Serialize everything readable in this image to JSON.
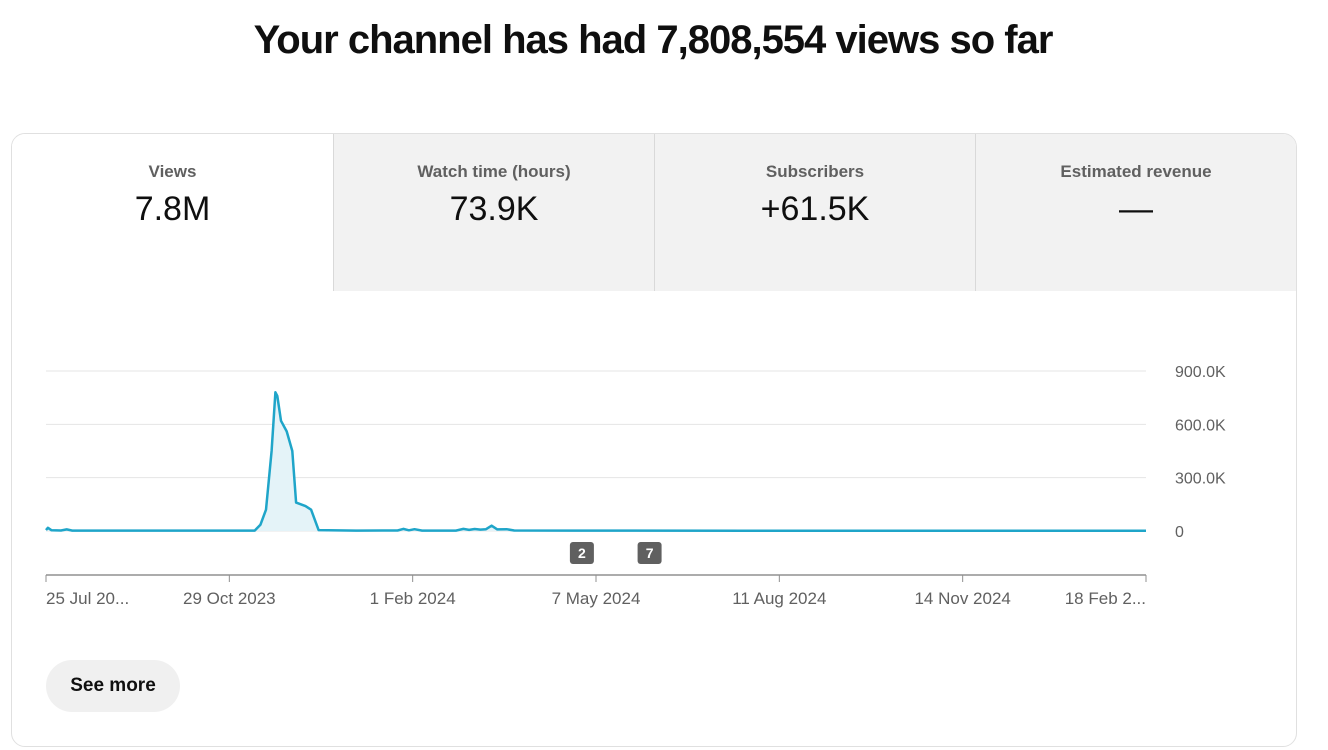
{
  "headline": "Your channel has had 7,808,554 views so far",
  "tabs": [
    {
      "label": "Views",
      "value": "7.8M"
    },
    {
      "label": "Watch time (hours)",
      "value": "73.9K"
    },
    {
      "label": "Subscribers",
      "value": "+61.5K"
    },
    {
      "label": "Estimated revenue",
      "value": "—"
    }
  ],
  "see_more_label": "See more",
  "colors": {
    "line": "#1fa5c9",
    "fill": "#e4f3f8",
    "grid": "#e5e5e5",
    "axis": "#909090",
    "marker": "#606060"
  },
  "chart_data": {
    "type": "area",
    "series": [
      {
        "values": [
          [
            "2023-07-25",
            5000
          ],
          [
            "2023-07-26",
            18000
          ],
          [
            "2023-07-28",
            4000
          ],
          [
            "2023-08-02",
            3000
          ],
          [
            "2023-08-05",
            9000
          ],
          [
            "2023-08-08",
            2000
          ],
          [
            "2023-09-01",
            2000
          ],
          [
            "2023-10-01",
            2000
          ],
          [
            "2023-11-05",
            2000
          ],
          [
            "2023-11-13",
            2000
          ],
          [
            "2023-11-16",
            35000
          ],
          [
            "2023-11-19",
            120000
          ],
          [
            "2023-11-22",
            450000
          ],
          [
            "2023-11-24",
            780000
          ],
          [
            "2023-11-25",
            760000
          ],
          [
            "2023-11-27",
            620000
          ],
          [
            "2023-11-30",
            560000
          ],
          [
            "2023-12-03",
            450000
          ],
          [
            "2023-12-05",
            160000
          ],
          [
            "2023-12-10",
            140000
          ],
          [
            "2023-12-13",
            120000
          ],
          [
            "2023-12-17",
            5000
          ],
          [
            "2024-01-06",
            2000
          ],
          [
            "2024-01-28",
            3000
          ],
          [
            "2024-01-31",
            12000
          ],
          [
            "2024-02-03",
            4000
          ],
          [
            "2024-02-06",
            10000
          ],
          [
            "2024-02-10",
            2000
          ],
          [
            "2024-02-28",
            2000
          ],
          [
            "2024-03-03",
            12000
          ],
          [
            "2024-03-06",
            6000
          ],
          [
            "2024-03-09",
            11000
          ],
          [
            "2024-03-12",
            8000
          ],
          [
            "2024-03-15",
            10000
          ],
          [
            "2024-03-18",
            30000
          ],
          [
            "2024-03-21",
            9000
          ],
          [
            "2024-03-26",
            10000
          ],
          [
            "2024-03-30",
            3000
          ],
          [
            "2024-05-01",
            2000
          ],
          [
            "2024-08-01",
            1500
          ],
          [
            "2024-11-01",
            1000
          ],
          [
            "2025-03-01",
            1000
          ]
        ]
      }
    ],
    "x_ticks": [
      "25 Jul 20...",
      "29 Oct 2023",
      "1 Feb 2024",
      "7 May 2024",
      "11 Aug 2024",
      "14 Nov 2024",
      "18 Feb 2..."
    ],
    "y_ticks": [
      "0",
      "300.0K",
      "600.0K",
      "900.0K"
    ],
    "ylim": [
      0,
      900000
    ],
    "xlim": [
      "2023-07-25",
      "2025-03-01"
    ],
    "grid": true,
    "markers": [
      {
        "label": "2",
        "date": "2024-05-05"
      },
      {
        "label": "7",
        "date": "2024-06-10"
      }
    ]
  }
}
